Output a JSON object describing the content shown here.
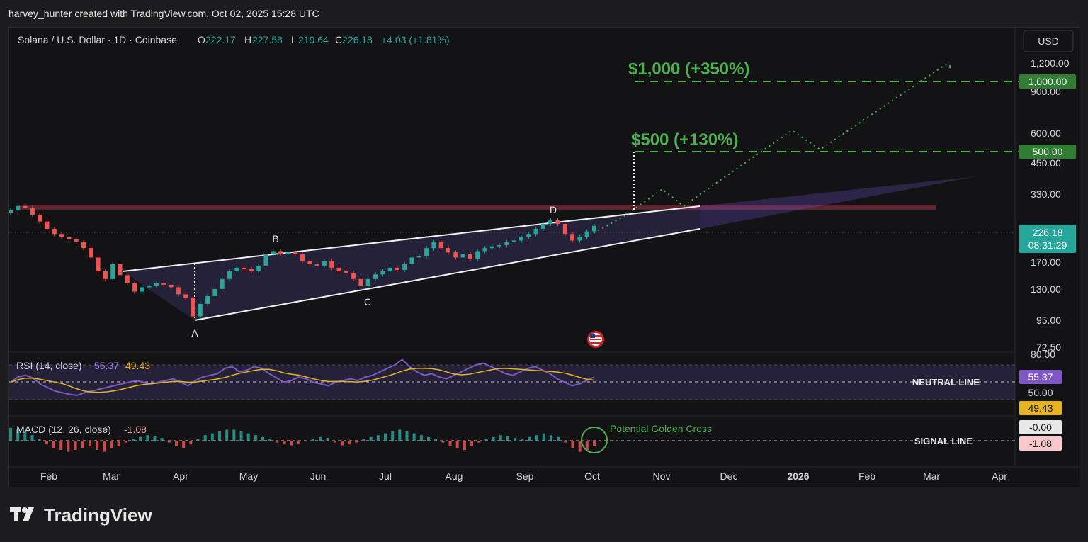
{
  "credit": "harvey_hunter created with TradingView.com, Oct 02, 2025 15:28 UTC",
  "brand": "TradingView",
  "header": {
    "symbol": "Solana / U.S. Dollar · 1D · Coinbase",
    "o_label": "O",
    "o": "222.17",
    "h_label": "H",
    "h": "227.58",
    "l_label": "L",
    "l": "219.64",
    "c_label": "C",
    "c": "226.18",
    "change": "+4.03 (+1.81%)"
  },
  "currency_button": "USD",
  "chart_data": {
    "type": "line",
    "series": [
      {
        "values": [
          260,
          270,
          265,
          250,
          235,
          220,
          210,
          205,
          200,
          195,
          185,
          170,
          150,
          140,
          160,
          145,
          135,
          125,
          130,
          132,
          135,
          133,
          130,
          122,
          118,
          100,
          112,
          120,
          128,
          140,
          150,
          155,
          153,
          150,
          158,
          175,
          180,
          176,
          178,
          175,
          165,
          160,
          158,
          165,
          155,
          150,
          148,
          140,
          132,
          140,
          146,
          150,
          155,
          152,
          160,
          170,
          172,
          185,
          195,
          185,
          178,
          170,
          175,
          168,
          180,
          185,
          188,
          190,
          195,
          198,
          205,
          210,
          220,
          230,
          238,
          230,
          210,
          198,
          205,
          215,
          226
        ]
      }
    ],
    "price_axis": [
      "1,200.00",
      "900.00",
      "600.00",
      "450.00",
      "330.00",
      "170.00",
      "130.00",
      "95.00",
      "72.50"
    ],
    "price_tags": [
      {
        "value": "1,000.00",
        "color": "#2e7d32"
      },
      {
        "value": "500.00",
        "color": "#2e7d32"
      },
      {
        "value": "226.18",
        "sub": "08:31:29",
        "color": "#26a69a"
      }
    ],
    "time_axis": [
      "Feb",
      "Mar",
      "Apr",
      "May",
      "Jun",
      "Jul",
      "Aug",
      "Sep",
      "Oct",
      "Nov",
      "Dec",
      "2026",
      "Feb",
      "Mar",
      "Apr"
    ],
    "pattern_points": [
      "A",
      "B",
      "C",
      "D"
    ],
    "targets": [
      {
        "label": "$1,000 (+350%)",
        "value": 1000
      },
      {
        "label": "$500 (+130%)",
        "value": 500
      }
    ],
    "resistance_level": 280
  },
  "rsi": {
    "label": "RSI (14, close)",
    "value": "55.37",
    "signal": "49.43",
    "axis_top": "80.00",
    "neutral_value": "50.00",
    "neutral_label": "NEUTRAL LINE",
    "values": [
      50,
      56,
      58,
      55,
      48,
      44,
      40,
      38,
      36,
      35,
      38,
      40,
      42,
      44,
      46,
      48,
      50,
      52,
      50,
      48,
      50,
      52,
      54,
      50,
      46,
      52,
      56,
      58,
      60,
      66,
      68,
      62,
      64,
      68,
      66,
      60,
      55,
      50,
      52,
      56,
      54,
      50,
      48,
      46,
      50,
      52,
      54,
      52,
      56,
      58,
      62,
      66,
      70,
      76,
      68,
      62,
      58,
      60,
      56,
      54,
      58,
      62,
      66,
      70,
      72,
      68,
      64,
      60,
      58,
      62,
      66,
      68,
      64,
      60,
      54,
      50,
      46,
      48,
      52,
      56
    ]
  },
  "macd": {
    "label": "MACD (12, 26, close)",
    "value": "-1.08",
    "signal_value": "-0.00",
    "hist_value": "-1.08",
    "signal_label": "SIGNAL LINE",
    "annotation": "Potential Golden Cross",
    "histogram": [
      14,
      12,
      10,
      6,
      2,
      -4,
      -8,
      -10,
      -12,
      -10,
      -8,
      -6,
      -10,
      -12,
      -8,
      -6,
      -2,
      2,
      4,
      6,
      5,
      3,
      -2,
      -6,
      -8,
      -4,
      2,
      6,
      8,
      10,
      12,
      12,
      10,
      8,
      6,
      4,
      2,
      -2,
      -4,
      -5,
      -3,
      -1,
      2,
      4,
      3,
      -2,
      -5,
      -4,
      -2,
      2,
      4,
      6,
      8,
      10,
      12,
      10,
      8,
      6,
      4,
      2,
      -2,
      -6,
      -8,
      -10,
      -6,
      -2,
      2,
      4,
      6,
      5,
      3,
      2,
      4,
      6,
      8,
      6,
      4,
      -2,
      -8,
      -12,
      -10,
      -6
    ]
  }
}
